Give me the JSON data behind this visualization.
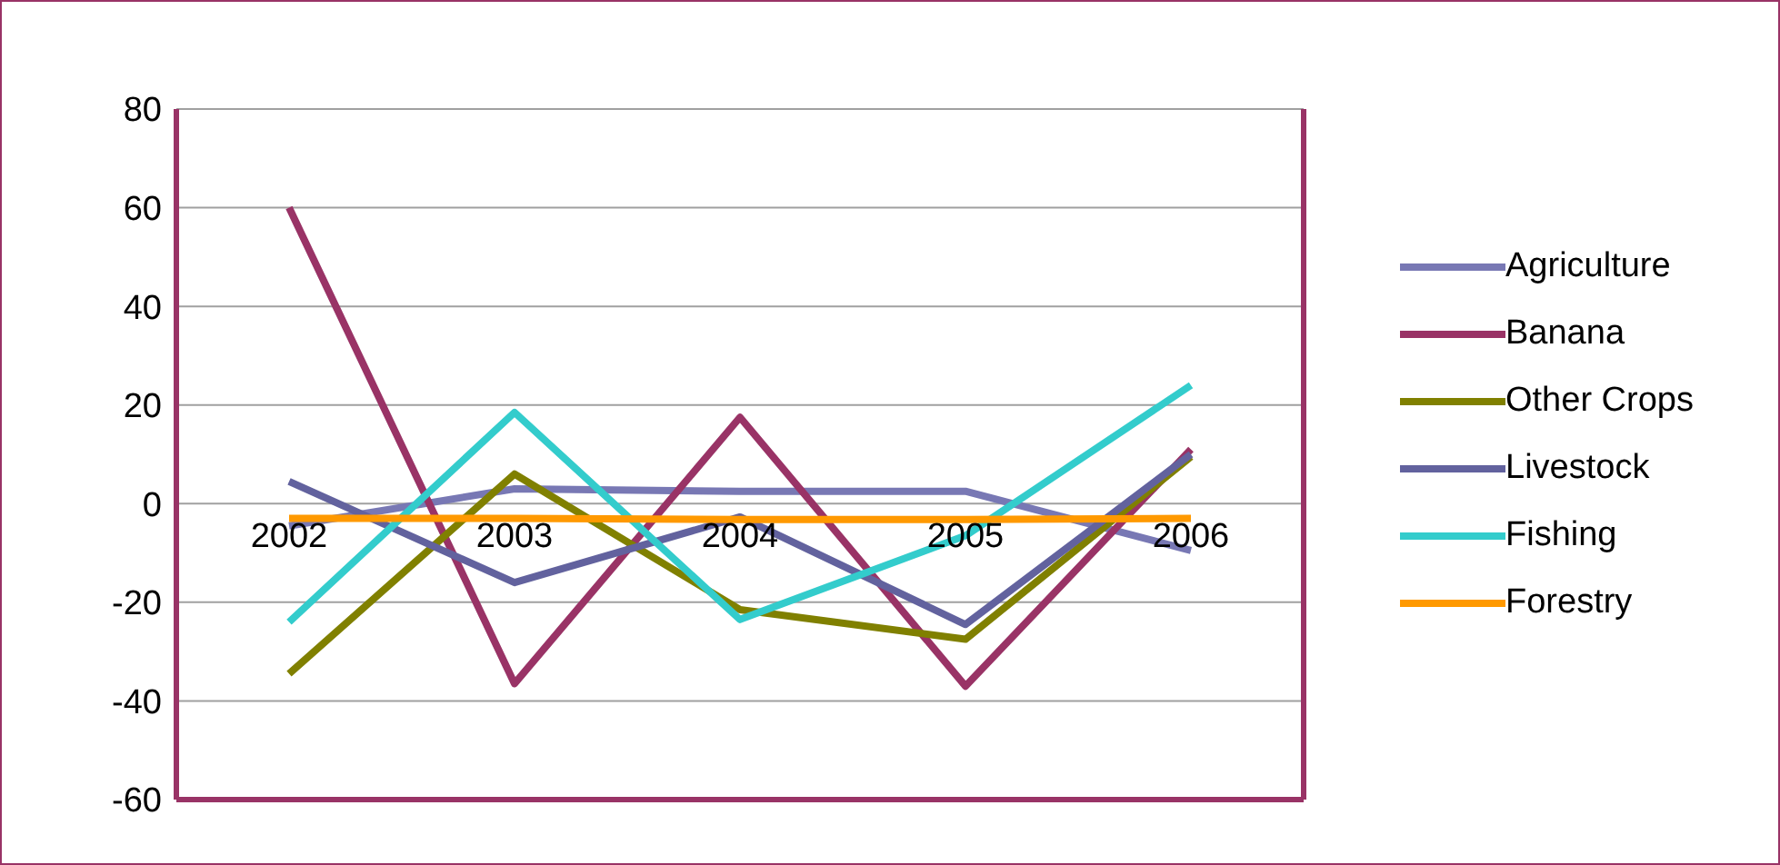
{
  "chart_data": {
    "type": "line",
    "categories": [
      "2002",
      "2003",
      "2004",
      "2005",
      "2006"
    ],
    "series": [
      {
        "name": "Agriculture",
        "color": "#7878b4",
        "values": [
          -4.5,
          3,
          2.5,
          2.5,
          -9.5
        ]
      },
      {
        "name": "Banana",
        "color": "#993366",
        "values": [
          60,
          -36.5,
          17.5,
          -37,
          11
        ]
      },
      {
        "name": "Other Crops",
        "color": "#808000",
        "values": [
          -34.5,
          6,
          -21.5,
          -27.5,
          9.5
        ]
      },
      {
        "name": "Livestock",
        "color": "#62629e",
        "values": [
          4.5,
          -16,
          -2.7,
          -24.5,
          10
        ]
      },
      {
        "name": "Fishing",
        "color": "#33cccc",
        "values": [
          -24,
          18.5,
          -23.5,
          -6.5,
          24
        ]
      },
      {
        "name": "Forestry",
        "color": "#ff9900",
        "values": [
          -3,
          -3,
          -3.2,
          -3.2,
          -3
        ]
      }
    ],
    "ylim": [
      -60,
      80
    ],
    "yticks": [
      -60,
      -40,
      -20,
      0,
      20,
      40,
      60,
      80
    ],
    "grid": "y",
    "legend": "right",
    "marker": "none",
    "line_style": "solid"
  }
}
